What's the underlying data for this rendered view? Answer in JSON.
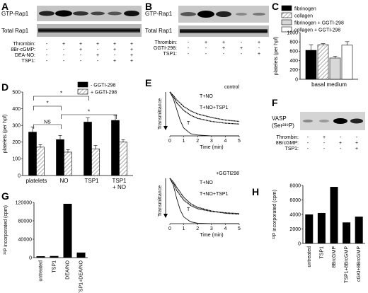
{
  "panels": {
    "A": {
      "letter": "A",
      "blot_labels": [
        "GTP-Rap1",
        "Total Rap1"
      ],
      "rows": [
        {
          "label": "Thrombin:",
          "signs": [
            "-",
            "+",
            "+",
            "+",
            "+",
            "+"
          ]
        },
        {
          "label": "8Br-cGMP:",
          "signs": [
            "-",
            "-",
            "+",
            "-",
            "+",
            "+"
          ]
        },
        {
          "label": "DEA-NO:",
          "signs": [
            "-",
            "-",
            "-",
            "+",
            "-",
            "+"
          ]
        },
        {
          "label": "TSP1:",
          "signs": [
            "-",
            "-",
            "-",
            "-",
            "+",
            "+"
          ]
        }
      ]
    },
    "B": {
      "letter": "B",
      "blot_labels": [
        "GTP-Rap1",
        "Total Rap1"
      ],
      "rows": [
        {
          "label": "Thrombin:",
          "signs": [
            "-",
            "+",
            "+",
            "-",
            "+"
          ]
        },
        {
          "label": "GGTI-298:",
          "signs": [
            "-",
            "-",
            "+",
            "+",
            "-"
          ]
        },
        {
          "label": "TSP1:",
          "signs": [
            "-",
            "-",
            "-",
            "-",
            "+"
          ]
        }
      ]
    },
    "C": {
      "letter": "C"
    },
    "D": {
      "letter": "D"
    },
    "E": {
      "letter": "E",
      "top_title": "control",
      "bottom_title": "+GGTI298",
      "ylabel": "Transmittance",
      "xlabel": "Time (min)",
      "top_curve_labels": [
        "T+NO",
        "T+NO+TSP1",
        "T"
      ],
      "bottom_curve_labels": [
        "T+NO",
        "T+NO+TSP1",
        "T"
      ]
    },
    "F": {
      "letter": "F",
      "blot_label_line1": "VASP",
      "blot_label_line2": "(Ser²³⁹P)",
      "rows": [
        {
          "label": "Thrombin:",
          "signs": [
            "-",
            "+",
            "-",
            "-"
          ]
        },
        {
          "label": "8BrcGMP:",
          "signs": [
            "-",
            "-",
            "+",
            "+"
          ]
        },
        {
          "label": "TSP1:",
          "signs": [
            "-",
            "-",
            "-",
            "+"
          ]
        }
      ]
    },
    "G": {
      "letter": "G"
    },
    "H": {
      "letter": "H"
    }
  },
  "chart_data": [
    {
      "panel": "C",
      "type": "bar",
      "ylabel": "platelets (per hpf)",
      "xlabel": "basal medium",
      "ylim": [
        0,
        1000
      ],
      "yticks": [
        0,
        200,
        400,
        600,
        800,
        1000
      ],
      "legend": [
        "fibrinogen",
        "collagen",
        "fibrinogen + GGTI-298",
        "collagen + GGTI-298"
      ],
      "series": [
        {
          "name": "fibrinogen",
          "color": "#000000",
          "pattern": "solid",
          "value": 620,
          "error": 120
        },
        {
          "name": "collagen",
          "color": "#ffffff",
          "pattern": "hatch",
          "value": 740,
          "error": 25
        },
        {
          "name": "fibrinogen + GGTI-298",
          "color": "#d8d8d8",
          "pattern": "solid",
          "value": 455,
          "error": 40
        },
        {
          "name": "collagen + GGTI-298",
          "color": "#ffffff",
          "pattern": "open",
          "value": 730,
          "error": 75
        }
      ]
    },
    {
      "panel": "D",
      "type": "bar",
      "ylabel": "platelets (per hpf)",
      "ylim": [
        0,
        500
      ],
      "yticks": [
        0,
        100,
        200,
        300,
        400,
        500
      ],
      "legend": [
        "- GGTI-298",
        "+ GGTI-298"
      ],
      "categories": [
        "platelets",
        "NO",
        "TSP1",
        "TSP1\n+ NO"
      ],
      "series": [
        {
          "name": "- GGTI-298",
          "color": "#000000",
          "pattern": "solid",
          "values": [
            260,
            215,
            320,
            330
          ],
          "errors": [
            30,
            25,
            25,
            30
          ]
        },
        {
          "name": "+ GGTI-298",
          "color": "#ffffff",
          "pattern": "hatch",
          "values": [
            170,
            140,
            160,
            200
          ],
          "errors": [
            15,
            15,
            20,
            15
          ]
        }
      ],
      "significance": [
        "*",
        "NS",
        "*",
        "*"
      ]
    },
    {
      "panel": "E",
      "type": "line",
      "xlabel": "Time (min)",
      "xticks": [
        0,
        1,
        2,
        3,
        4,
        5
      ],
      "xlim": [
        0,
        5
      ],
      "charts": [
        {
          "title": "control",
          "series": [
            {
              "name": "T+NO",
              "x": [
                0,
                0.25,
                0.5,
                1,
                1.5,
                2,
                3,
                4,
                5
              ],
              "y": [
                1.0,
                0.9,
                0.75,
                0.58,
                0.47,
                0.4,
                0.33,
                0.29,
                0.27
              ]
            },
            {
              "name": "T+NO+TSP1",
              "x": [
                0,
                0.25,
                0.5,
                1,
                1.5,
                2,
                3,
                4,
                5
              ],
              "y": [
                1.0,
                0.92,
                0.82,
                0.67,
                0.57,
                0.5,
                0.42,
                0.36,
                0.33
              ]
            },
            {
              "name": "T",
              "x": [
                0,
                0.25,
                0.5,
                0.75,
                1,
                1.5,
                2,
                3,
                4,
                5
              ],
              "y": [
                1.0,
                0.85,
                0.6,
                0.35,
                0.18,
                0.05,
                0.02,
                0.0,
                0.0,
                0.0
              ]
            }
          ]
        },
        {
          "title": "+GGTI298",
          "series": [
            {
              "name": "T+NO",
              "x": [
                0,
                0.25,
                0.5,
                1,
                1.5,
                2,
                3,
                4,
                5
              ],
              "y": [
                1.0,
                0.9,
                0.73,
                0.52,
                0.4,
                0.33,
                0.27,
                0.24,
                0.22
              ]
            },
            {
              "name": "T+NO+TSP1",
              "x": [
                0,
                0.25,
                0.5,
                1,
                1.5,
                2,
                3,
                4,
                5
              ],
              "y": [
                1.0,
                0.92,
                0.8,
                0.58,
                0.44,
                0.36,
                0.28,
                0.23,
                0.21
              ]
            },
            {
              "name": "T",
              "x": [
                0,
                0.25,
                0.5,
                0.75,
                1,
                1.5,
                2,
                3,
                4,
                5
              ],
              "y": [
                1.0,
                0.85,
                0.55,
                0.3,
                0.15,
                0.04,
                0.01,
                0.0,
                0.0,
                0.0
              ]
            }
          ]
        }
      ]
    },
    {
      "panel": "G",
      "type": "bar",
      "ylabel": "³²P incorporated (cpm)",
      "ylim": [
        0,
        120000
      ],
      "yticks": [
        0,
        40000,
        80000,
        120000
      ],
      "categories": [
        "untreated",
        "TSP1",
        "DEA/NO",
        "TSP1+DEA/NO"
      ],
      "values": [
        3000,
        3500,
        117000,
        11000
      ]
    },
    {
      "panel": "H",
      "type": "bar",
      "ylabel": "³²P incorporated (cpm)",
      "ylim": [
        0,
        8000
      ],
      "yticks": [
        0,
        2000,
        4000,
        6000,
        8000
      ],
      "categories": [
        "untreated",
        "TSP1",
        "8BrcGMP",
        "TSP1+8BrcGMP",
        "cGKI+8BrcGMP"
      ],
      "values": [
        4000,
        4200,
        7800,
        2900,
        3700
      ]
    }
  ]
}
